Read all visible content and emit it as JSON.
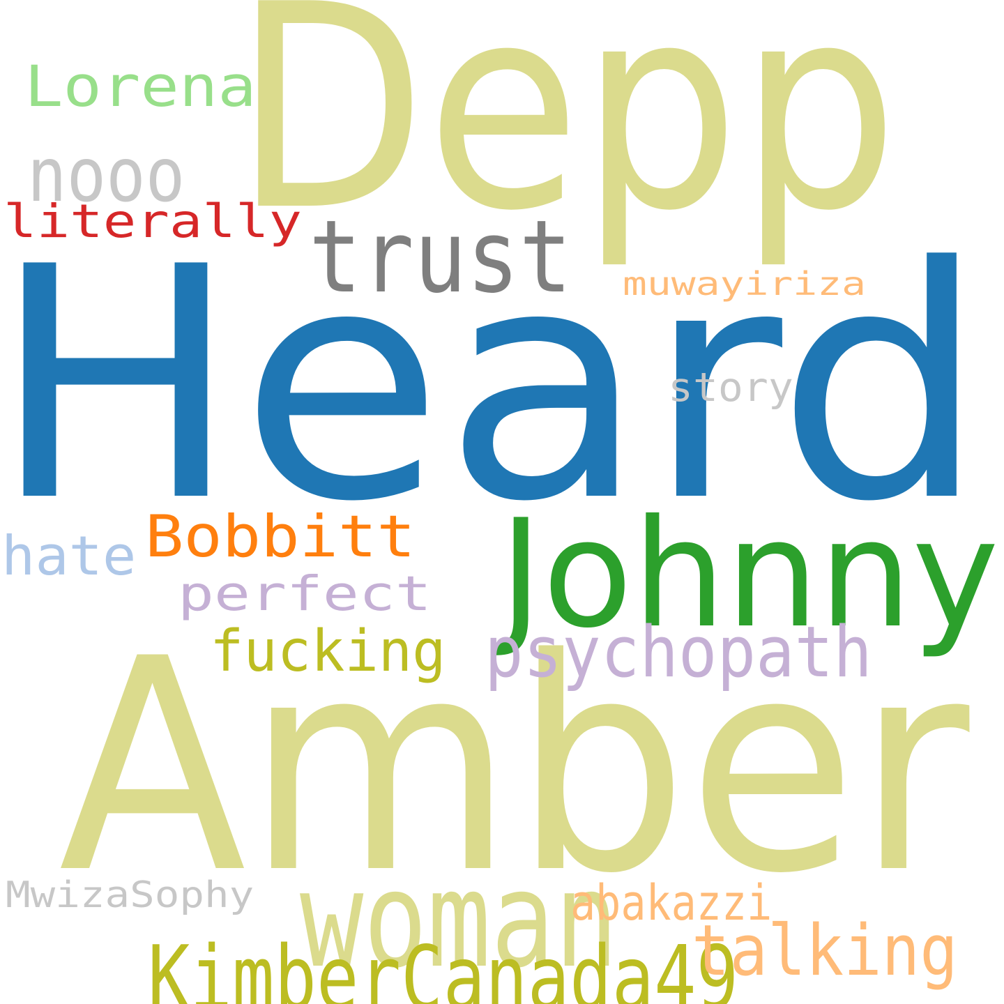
{
  "words": [
    {
      "id": "heard",
      "text": "Heard",
      "color": "#1f77b4"
    },
    {
      "id": "amber",
      "text": "Amber",
      "color": "#dbdb8d"
    },
    {
      "id": "depp",
      "text": "Depp",
      "color": "#dbdb8d"
    },
    {
      "id": "johnny",
      "text": "Johnny",
      "color": "#2ca02c"
    },
    {
      "id": "trust",
      "text": "trust",
      "color": "#7f7f7f"
    },
    {
      "id": "woman",
      "text": "woman",
      "color": "#dbdb8d"
    },
    {
      "id": "psychopath",
      "text": "psychopath",
      "color": "#c5b0d5"
    },
    {
      "id": "kimbercanada49",
      "text": "KimberCanada49",
      "color": "#bcbd22"
    },
    {
      "id": "talking",
      "text": "talking",
      "color": "#ffbb78"
    },
    {
      "id": "bobbitt",
      "text": "Bobbitt",
      "color": "#ff7f0e"
    },
    {
      "id": "perfect",
      "text": "perfect",
      "color": "#c5b0d5"
    },
    {
      "id": "lorena",
      "text": "Lorena",
      "color": "#98df8a"
    },
    {
      "id": "literally",
      "text": "literally",
      "color": "#d62728"
    },
    {
      "id": "fucking",
      "text": "fucking",
      "color": "#bcbd22"
    },
    {
      "id": "nooo",
      "text": "nooo",
      "color": "#c7c7c7"
    },
    {
      "id": "hate",
      "text": "hate",
      "color": "#aec7e8"
    },
    {
      "id": "muwayiriza",
      "text": "muwayiriza",
      "color": "#ffbb78"
    },
    {
      "id": "story",
      "text": "story",
      "color": "#c7c7c7"
    },
    {
      "id": "mwizasophy",
      "text": "MwizaSophy",
      "color": "#c7c7c7"
    },
    {
      "id": "abakazzi",
      "text": "abakazzi",
      "color": "#ffbb78"
    }
  ]
}
